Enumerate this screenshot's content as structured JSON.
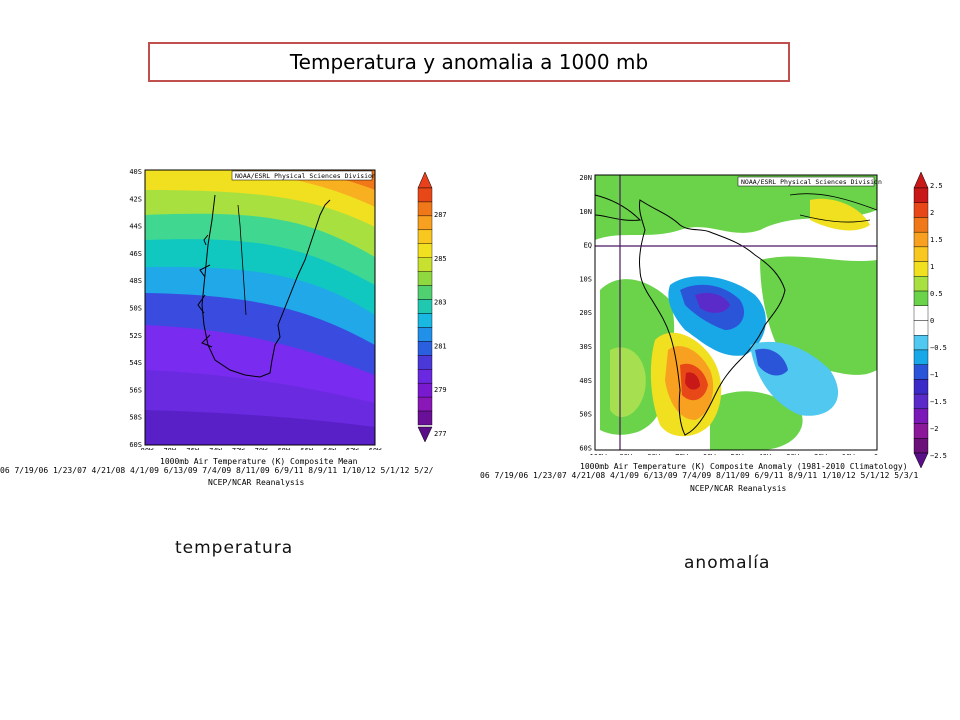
{
  "title": "Temperatura y anomalia a 1000 mb",
  "left_map": {
    "credit": "NOAA/ESRL Physical Sciences Division",
    "lat_labels": [
      "40S",
      "42S",
      "44S",
      "46S",
      "48S",
      "50S",
      "52S",
      "54S",
      "56S",
      "58S",
      "60S"
    ],
    "lon_labels": [
      "80W",
      "78W",
      "76W",
      "74W",
      "72W",
      "70W",
      "68W",
      "66W",
      "64W",
      "62W",
      "60W"
    ],
    "map_title": "1000mb Air Temperature (K) Composite Mean",
    "dates": "06 7/19/06 1/23/07 4/21/08 4/1/09 6/13/09 7/4/09 8/11/09 6/9/11 8/9/11 1/10/12 5/1/12 5/2/",
    "source": "NCEP/NCAR Reanalysis",
    "colorbar_labels": [
      "287",
      "285",
      "283",
      "281",
      "279",
      "277"
    ],
    "caption": "temperatura"
  },
  "right_map": {
    "credit": "NOAA/ESRL Physical Sciences Division",
    "lat_labels": [
      "20N",
      "10N",
      "EQ",
      "10S",
      "20S",
      "30S",
      "40S",
      "50S",
      "60S"
    ],
    "lon_labels": [
      "100W",
      "90W",
      "80W",
      "70W",
      "60W",
      "50W",
      "40W",
      "30W",
      "20W",
      "10W",
      "0"
    ],
    "map_title": "1000mb Air Temperature (K) Composite Anomaly (1981-2010 Climatology)",
    "dates": "06 7/19/06 1/23/07 4/21/08 4/1/09 6/13/09 7/4/09 8/11/09 6/9/11 8/9/11 1/10/12 5/1/12 5/3/1",
    "source": "NCEP/NCAR Reanalysis",
    "colorbar_labels": [
      "2.5",
      "2",
      "1.5",
      "1",
      "0.5",
      "0",
      "−0.5",
      "−1",
      "−1.5",
      "−2",
      "−2.5"
    ],
    "caption": "anomalía"
  }
}
